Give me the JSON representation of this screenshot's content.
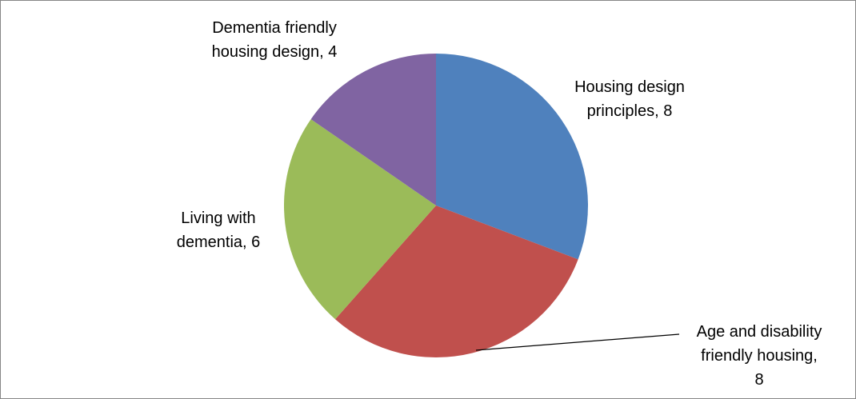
{
  "chart_data": {
    "type": "pie",
    "title": "",
    "slices": [
      {
        "name": "Housing design principles",
        "value": 8,
        "color": "#4F81BD",
        "label_lines": [
          "Housing design",
          "principles, 8"
        ]
      },
      {
        "name": "Age and disability friendly housing",
        "value": 8,
        "color": "#C0504D",
        "label_lines": [
          "Age and disability",
          "friendly housing,",
          "8"
        ]
      },
      {
        "name": "Living with dementia",
        "value": 6,
        "color": "#9BBB59",
        "label_lines": [
          "Living with",
          "dementia, 6"
        ]
      },
      {
        "name": "Dementia friendly housing design",
        "value": 4,
        "color": "#8064A2",
        "label_lines": [
          "Dementia friendly",
          "housing design, 4"
        ]
      }
    ],
    "legend": "none",
    "start_angle_deg": 0,
    "direction": "clockwise"
  }
}
